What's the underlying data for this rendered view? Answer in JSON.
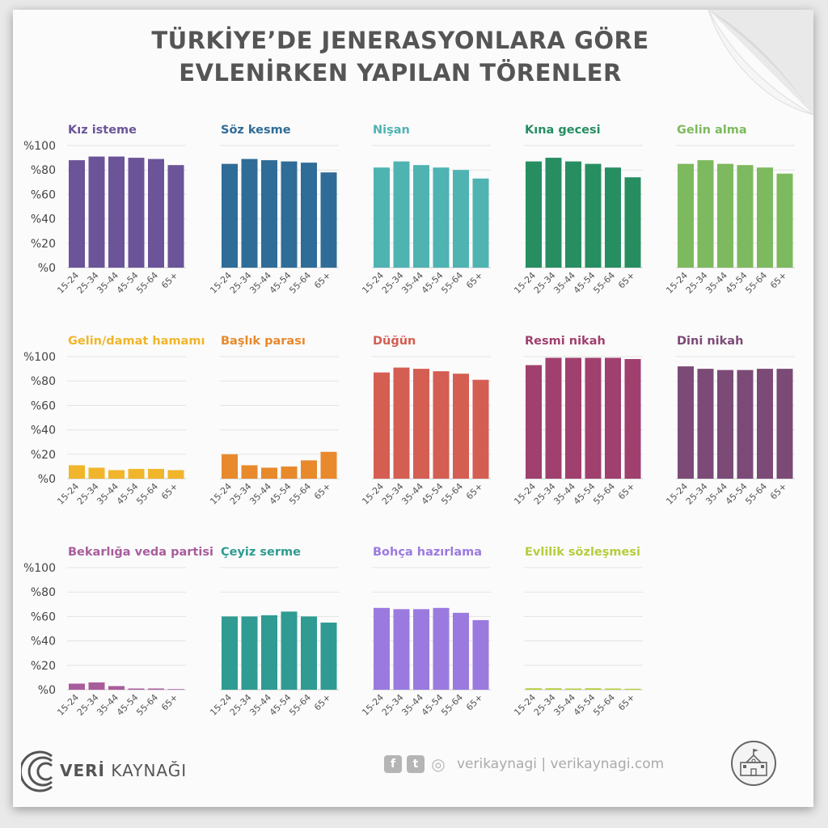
{
  "title": {
    "line1": "TÜRKİYE’DE JENERASYONLARA GÖRE",
    "line2": "EVLENİRKEN YAPILAN TÖRENLER"
  },
  "chart_data": {
    "type": "bar",
    "categories": [
      "15-24",
      "25-34",
      "35-44",
      "45-54",
      "55-64",
      "65+"
    ],
    "y_ticks": [
      "%0",
      "%20",
      "%40",
      "%60",
      "%80",
      "%100"
    ],
    "ylim": [
      0,
      100
    ],
    "grid": true,
    "panels": [
      {
        "name": "Kız isteme",
        "color": "#6b5498",
        "values": [
          88,
          91,
          91,
          90,
          89,
          84
        ]
      },
      {
        "name": "Söz kesme",
        "color": "#2f6c97",
        "values": [
          85,
          89,
          88,
          87,
          86,
          78
        ]
      },
      {
        "name": "Nişan",
        "color": "#4fb3b2",
        "values": [
          82,
          87,
          84,
          82,
          80,
          73
        ]
      },
      {
        "name": "Kına gecesi",
        "color": "#278e62",
        "values": [
          87,
          90,
          87,
          85,
          82,
          74
        ]
      },
      {
        "name": "Gelin alma",
        "color": "#7db95e",
        "values": [
          85,
          88,
          85,
          84,
          82,
          77
        ]
      },
      {
        "name": "Gelin/damat hamamı",
        "color": "#f0b52a",
        "values": [
          11,
          9,
          7,
          8,
          8,
          7
        ]
      },
      {
        "name": "Başlık parası",
        "color": "#e8892c",
        "values": [
          20,
          11,
          9,
          10,
          15,
          22
        ]
      },
      {
        "name": "Düğün",
        "color": "#d45e52",
        "values": [
          87,
          91,
          90,
          88,
          86,
          81
        ]
      },
      {
        "name": "Resmi nikah",
        "color": "#a0406e",
        "values": [
          93,
          99,
          99,
          99,
          99,
          98
        ]
      },
      {
        "name": "Dini nikah",
        "color": "#7b4a77",
        "values": [
          92,
          90,
          89,
          89,
          90,
          90
        ]
      },
      {
        "name": "Bekarlığa veda partisi",
        "color": "#a85d9b",
        "values": [
          5,
          6,
          3,
          1,
          1,
          0.5
        ]
      },
      {
        "name": "Çeyiz serme",
        "color": "#2f9b92",
        "values": [
          60,
          60,
          61,
          64,
          60,
          55
        ]
      },
      {
        "name": "Bohça hazırlama",
        "color": "#9b7ae0",
        "values": [
          67,
          66,
          66,
          67,
          63,
          57
        ]
      },
      {
        "name": "Evlilik sözleşmesi",
        "color": "#b5cd3c",
        "values": [
          1.2,
          1.2,
          1,
          1.2,
          1,
          0.8
        ]
      }
    ]
  },
  "footer": {
    "logo_bold": "VERİ",
    "logo_rest": " KAYNAĞI",
    "social_text": "verikaynagi | verikaynagi.com",
    "icons": [
      "facebook-icon",
      "twitter-icon",
      "instagram-icon"
    ],
    "icon_glyphs": [
      "f",
      "t",
      "◎"
    ]
  }
}
